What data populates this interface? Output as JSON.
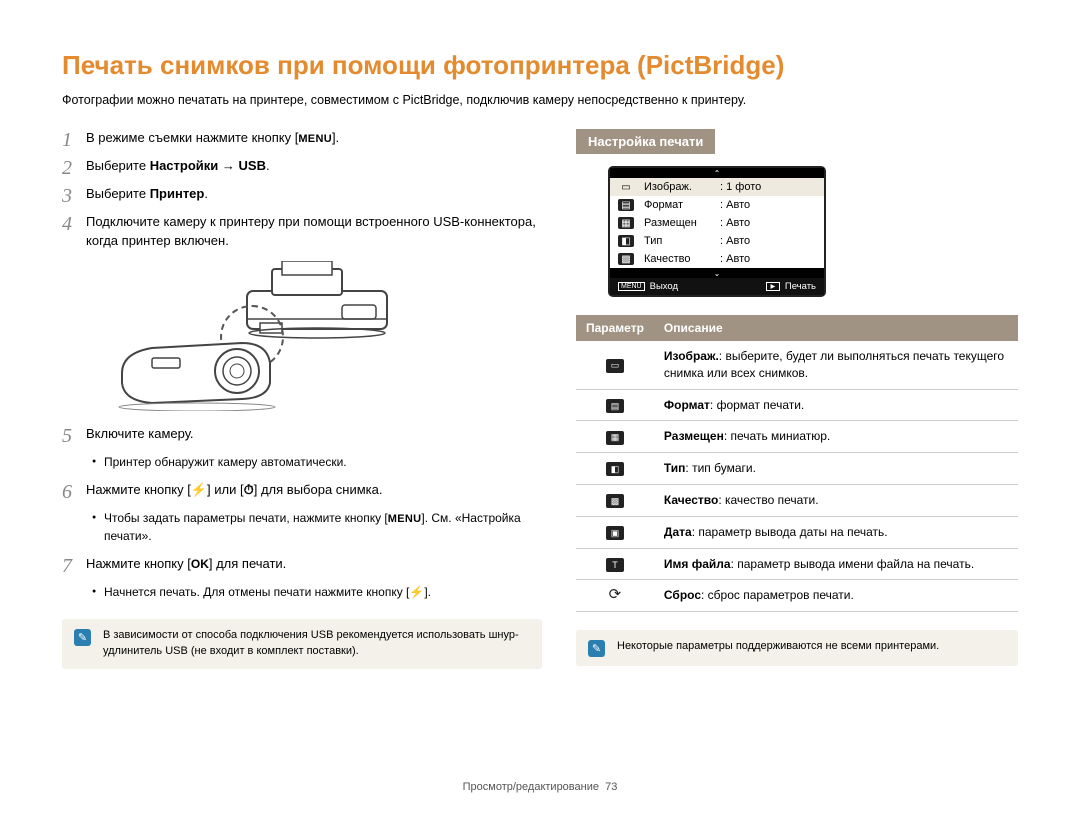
{
  "title": "Печать снимков при помощи фотопринтера (PictBridge)",
  "intro": "Фотографии можно печатать на принтере, совместимом с PictBridge, подключив камеру непосредственно к принтеру.",
  "buttons": {
    "menu": "MENU",
    "ok": "OK"
  },
  "steps": {
    "s1": {
      "n": "1",
      "pre": "В режиме съемки нажмите кнопку [",
      "post": "]."
    },
    "s2": {
      "n": "2",
      "pre": "Выберите ",
      "b1": "Настройки",
      "arrow": " → ",
      "b2": "USB",
      "post": "."
    },
    "s3": {
      "n": "3",
      "pre": "Выберите ",
      "b1": "Принтер",
      "post": "."
    },
    "s4": {
      "n": "4",
      "text": "Подключите камеру к принтеру при помощи встроенного USB-коннектора, когда принтер включен."
    },
    "s5": {
      "n": "5",
      "text": "Включите камеру."
    },
    "s5b": "Принтер обнаружит камеру автоматически.",
    "s6": {
      "n": "6",
      "pre": "Нажмите кнопку [",
      "mid": "] или [",
      "post": "] для выбора снимка."
    },
    "s6b_pre": "Чтобы задать параметры печати, нажмите кнопку [",
    "s6b_post": "]. См. «Настройка печати».",
    "s7": {
      "n": "7",
      "pre": "Нажмите кнопку [",
      "post": "] для печати."
    },
    "s7b_pre": "Начнется печать. Для отмены печати нажмите кнопку [",
    "s7b_post": "]."
  },
  "note_left": "В зависимости от способа подключения USB рекомендуется использовать шнур-удлинитель USB (не входит в комплект поставки).",
  "right_head": "Настройка печати",
  "screen": {
    "rows": [
      {
        "label": "Изображ.",
        "value": "1 фото",
        "selected": true
      },
      {
        "label": "Формат",
        "value": "Авто"
      },
      {
        "label": "Размещен",
        "value": "Авто"
      },
      {
        "label": "Тип",
        "value": "Авто"
      },
      {
        "label": "Качество",
        "value": "Авто"
      }
    ],
    "footer": {
      "exit": "Выход",
      "print": "Печать"
    }
  },
  "table": {
    "h1": "Параметр",
    "h2": "Описание",
    "rows": [
      {
        "b": "Изображ.",
        "t": ": выберите, будет ли выполняться печать текущего снимка или всех снимков."
      },
      {
        "b": "Формат",
        "t": ": формат печати."
      },
      {
        "b": "Размещен",
        "t": ": печать миниатюр."
      },
      {
        "b": "Тип",
        "t": ": тип бумаги."
      },
      {
        "b": "Качество",
        "t": ": качество печати."
      },
      {
        "b": "Дата",
        "t": ": параметр вывода даты на печать."
      },
      {
        "b": "Имя файла",
        "t": ": параметр вывода имени файла на печать."
      },
      {
        "b": "Сброс",
        "t": ": сброс параметров печати."
      }
    ]
  },
  "note_right": "Некоторые параметры поддерживаются не всеми принтерами.",
  "footer": {
    "section": "Просмотр/редактирование",
    "page": "73"
  }
}
